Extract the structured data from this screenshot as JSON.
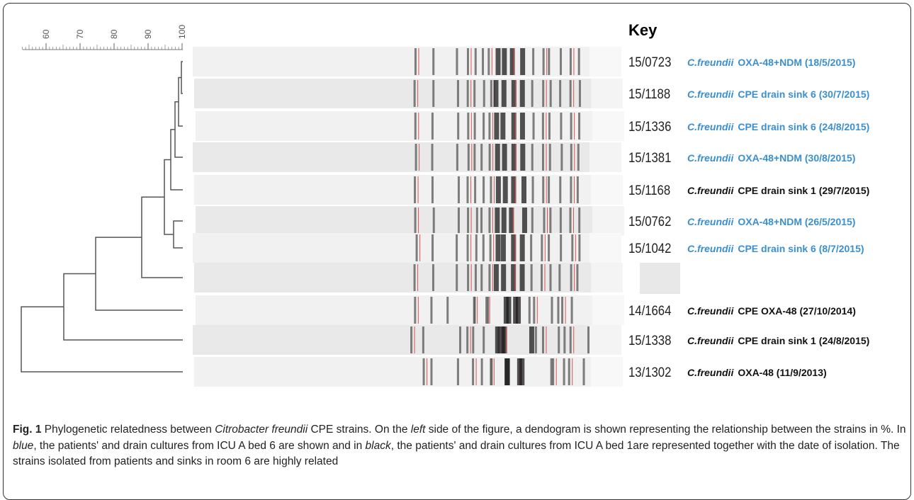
{
  "scale": {
    "ticks": [
      60,
      70,
      80,
      90,
      100
    ]
  },
  "key": {
    "title": "Key",
    "rows": [
      {
        "id": "15/0723",
        "species": "C.freundii",
        "desc": "OXA-48+NDM (18/5/2015)",
        "color": "#3a8fd0"
      },
      {
        "id": "15/1188",
        "species": "C.freundii",
        "desc": "CPE drain sink  6 (30/7/2015)",
        "color": "#3a8fd0"
      },
      {
        "id": "15/1336",
        "species": "C.freundii",
        "desc": "CPE drain sink 6 (24/8/2015)",
        "color": "#3a8fd0"
      },
      {
        "id": "15/1381",
        "species": "C.freundii",
        "desc": "OXA-48+NDM (30/8/2015)",
        "color": "#3a8fd0"
      },
      {
        "id": "15/1168",
        "species": "C.freundii",
        "desc": "CPE drain sink 1 (29/7/2015)",
        "color": "#111111"
      },
      {
        "id": "15/0762",
        "species": "C.freundii",
        "desc": "OXA-48+NDM  (26/5/2015)",
        "color": "#3a8fd0"
      },
      {
        "id": "15/1042",
        "species": "C.freundii",
        "desc": "CPE drain sink 6 (8/7/2015)",
        "color": "#3a8fd0"
      },
      {
        "id": "14/1664",
        "species": "C.freundii",
        "desc": "CPE OXA-48 (27/10/2014)",
        "color": "#111111"
      },
      {
        "id": "15/1338",
        "species": "C.freundii",
        "desc": "CPE drain sink 1 (24/8/2015)",
        "color": "#111111"
      },
      {
        "id": "13/1302",
        "species": "C.freundii",
        "desc": "OXA-48 (11/9/2013)",
        "color": "#111111"
      }
    ]
  },
  "caption": {
    "label": "Fig. 1",
    "segments": [
      " Phylogenetic relatedness between ",
      "Citrobacter freundii",
      " CPE strains. On the ",
      "left",
      " side of the figure, a dendogram is shown representing the relationship between the strains in %. In ",
      "blue",
      ", the patients' and drain cultures from ICU A bed 6 are shown and in ",
      "black",
      ", the patients' and drain cultures from ICU A bed 1are represented together with the date of isolation. The strains isolated from patients and sinks in room 6 are highly related"
    ]
  }
}
